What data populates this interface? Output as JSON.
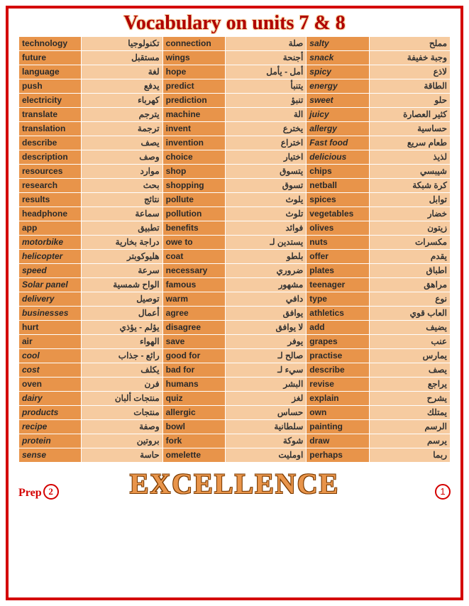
{
  "title": "Vocabulary on units 7 & 8",
  "footer_brand": "EXCELLENCE",
  "prep_label": "Prep",
  "prep_num": "2",
  "page_num": "1",
  "rows": [
    [
      [
        "technology",
        0
      ],
      [
        "تكنولوجيا",
        0
      ],
      [
        "connection",
        0
      ],
      [
        "صلة",
        0
      ],
      [
        "salty",
        1
      ],
      [
        "مملح",
        0
      ]
    ],
    [
      [
        "future",
        0
      ],
      [
        "مستقبل",
        0
      ],
      [
        "wings",
        0
      ],
      [
        "أجنحة",
        0
      ],
      [
        "snack",
        1
      ],
      [
        "وجبة خفيفة",
        0
      ]
    ],
    [
      [
        "language",
        0
      ],
      [
        "لغة",
        0
      ],
      [
        "hope",
        0
      ],
      [
        "أمل - يأمل",
        0
      ],
      [
        "spicy",
        1
      ],
      [
        "لاذع",
        0
      ]
    ],
    [
      [
        "push",
        0
      ],
      [
        "يدفع",
        0
      ],
      [
        "predict",
        0
      ],
      [
        "يتنبأ",
        0
      ],
      [
        "energy",
        1
      ],
      [
        "الطاقة",
        0
      ]
    ],
    [
      [
        "electricity",
        0
      ],
      [
        "كهرباء",
        0
      ],
      [
        "prediction",
        0
      ],
      [
        "تنبؤ",
        0
      ],
      [
        "sweet",
        1
      ],
      [
        "حلو",
        0
      ]
    ],
    [
      [
        "translate",
        0
      ],
      [
        "يترجم",
        0
      ],
      [
        "machine",
        0
      ],
      [
        "الة",
        0
      ],
      [
        "juicy",
        1
      ],
      [
        "كثير العصارة",
        0
      ]
    ],
    [
      [
        "translation",
        0
      ],
      [
        "ترجمة",
        0
      ],
      [
        "invent",
        0
      ],
      [
        "يخترع",
        0
      ],
      [
        "allergy",
        1
      ],
      [
        "حساسية",
        0
      ]
    ],
    [
      [
        "describe",
        0
      ],
      [
        "يصف",
        0
      ],
      [
        "invention",
        0
      ],
      [
        "اختراع",
        0
      ],
      [
        "Fast food",
        1
      ],
      [
        "طعام سريع",
        0
      ]
    ],
    [
      [
        "description",
        0
      ],
      [
        "وصف",
        0
      ],
      [
        "choice",
        0
      ],
      [
        "اختيار",
        0
      ],
      [
        "delicious",
        1
      ],
      [
        "لذيذ",
        0
      ]
    ],
    [
      [
        "resources",
        0
      ],
      [
        "موارد",
        0
      ],
      [
        "shop",
        0
      ],
      [
        "يتسوق",
        0
      ],
      [
        "chips",
        0
      ],
      [
        "شيبسي",
        0
      ]
    ],
    [
      [
        "research",
        0
      ],
      [
        "بحث",
        0
      ],
      [
        "shopping",
        0
      ],
      [
        "تسوق",
        0
      ],
      [
        "netball",
        0
      ],
      [
        "كرة شبكة",
        0
      ]
    ],
    [
      [
        "results",
        0
      ],
      [
        "نتائج",
        0
      ],
      [
        "pollute",
        0
      ],
      [
        "يلوث",
        0
      ],
      [
        "spices",
        0
      ],
      [
        "توابل",
        0
      ]
    ],
    [
      [
        "headphone",
        0
      ],
      [
        "سماعة",
        0
      ],
      [
        "pollution",
        0
      ],
      [
        "تلوث",
        0
      ],
      [
        "vegetables",
        0
      ],
      [
        "خضار",
        0
      ]
    ],
    [
      [
        "app",
        0
      ],
      [
        "تطبيق",
        0
      ],
      [
        "benefits",
        0
      ],
      [
        "فوائد",
        0
      ],
      [
        "olives",
        0
      ],
      [
        "زيتون",
        0
      ]
    ],
    [
      [
        "motorbike",
        1
      ],
      [
        "دراجة بخارية",
        0
      ],
      [
        "owe to",
        0
      ],
      [
        "يستدين لـ",
        0
      ],
      [
        "nuts",
        0
      ],
      [
        "مكسرات",
        0
      ]
    ],
    [
      [
        "helicopter",
        1
      ],
      [
        "هليوكوبتر",
        0
      ],
      [
        "coat",
        0
      ],
      [
        "بلطو",
        0
      ],
      [
        "offer",
        0
      ],
      [
        "يقدم",
        0
      ]
    ],
    [
      [
        "speed",
        1
      ],
      [
        "سرعة",
        0
      ],
      [
        "necessary",
        0
      ],
      [
        "ضروري",
        0
      ],
      [
        "plates",
        0
      ],
      [
        "اطباق",
        0
      ]
    ],
    [
      [
        "Solar panel",
        1
      ],
      [
        "الواح شمسية",
        0
      ],
      [
        "famous",
        0
      ],
      [
        "مشهور",
        0
      ],
      [
        "teenager",
        0
      ],
      [
        "مراهق",
        0
      ]
    ],
    [
      [
        "delivery",
        1
      ],
      [
        "توصيل",
        0
      ],
      [
        "warm",
        0
      ],
      [
        "دافي",
        0
      ],
      [
        "type",
        0
      ],
      [
        "نوع",
        0
      ]
    ],
    [
      [
        "businesses",
        1
      ],
      [
        "أعمال",
        0
      ],
      [
        "agree",
        0
      ],
      [
        "يوافق",
        0
      ],
      [
        "athletics",
        0
      ],
      [
        "العاب قوي",
        0
      ]
    ],
    [
      [
        "hurt",
        0
      ],
      [
        "يؤلم - يؤذي",
        0
      ],
      [
        "disagree",
        0
      ],
      [
        "لا يوافق",
        0
      ],
      [
        "add",
        0
      ],
      [
        "يضيف",
        0
      ]
    ],
    [
      [
        "air",
        0
      ],
      [
        "الهواء",
        0
      ],
      [
        "save",
        0
      ],
      [
        "يوفر",
        0
      ],
      [
        "grapes",
        0
      ],
      [
        "عنب",
        0
      ]
    ],
    [
      [
        "cool",
        1
      ],
      [
        "رائع - جذاب",
        0
      ],
      [
        "good for",
        0
      ],
      [
        "صالح لـ",
        0
      ],
      [
        "practise",
        0
      ],
      [
        "يمارس",
        0
      ]
    ],
    [
      [
        "cost",
        1
      ],
      [
        "يكلف",
        0
      ],
      [
        "bad for",
        0
      ],
      [
        "سيء لـ",
        0
      ],
      [
        "describe",
        0
      ],
      [
        "يصف",
        0
      ]
    ],
    [
      [
        "oven",
        0
      ],
      [
        "فرن",
        0
      ],
      [
        "humans",
        0
      ],
      [
        "البشر",
        0
      ],
      [
        "revise",
        0
      ],
      [
        "يراجع",
        0
      ]
    ],
    [
      [
        "dairy",
        1
      ],
      [
        "منتجات ألبان",
        0
      ],
      [
        "quiz",
        0
      ],
      [
        "لغز",
        0
      ],
      [
        "explain",
        0
      ],
      [
        "يشرح",
        0
      ]
    ],
    [
      [
        "products",
        1
      ],
      [
        "منتجات",
        0
      ],
      [
        "allergic",
        0
      ],
      [
        "حساس",
        0
      ],
      [
        "own",
        0
      ],
      [
        "يمتلك",
        0
      ]
    ],
    [
      [
        "recipe",
        1
      ],
      [
        "وصفة",
        0
      ],
      [
        "bowl",
        0
      ],
      [
        "سلطانية",
        0
      ],
      [
        "painting",
        0
      ],
      [
        "الرسم",
        0
      ]
    ],
    [
      [
        "protein",
        1
      ],
      [
        "بروتين",
        0
      ],
      [
        "fork",
        0
      ],
      [
        "شوكة",
        0
      ],
      [
        "draw",
        0
      ],
      [
        "يرسم",
        0
      ]
    ],
    [
      [
        "sense",
        1
      ],
      [
        "حاسة",
        0
      ],
      [
        "omelette",
        0
      ],
      [
        "اومليت",
        0
      ],
      [
        "perhaps",
        0
      ],
      [
        "ربما",
        0
      ]
    ]
  ]
}
